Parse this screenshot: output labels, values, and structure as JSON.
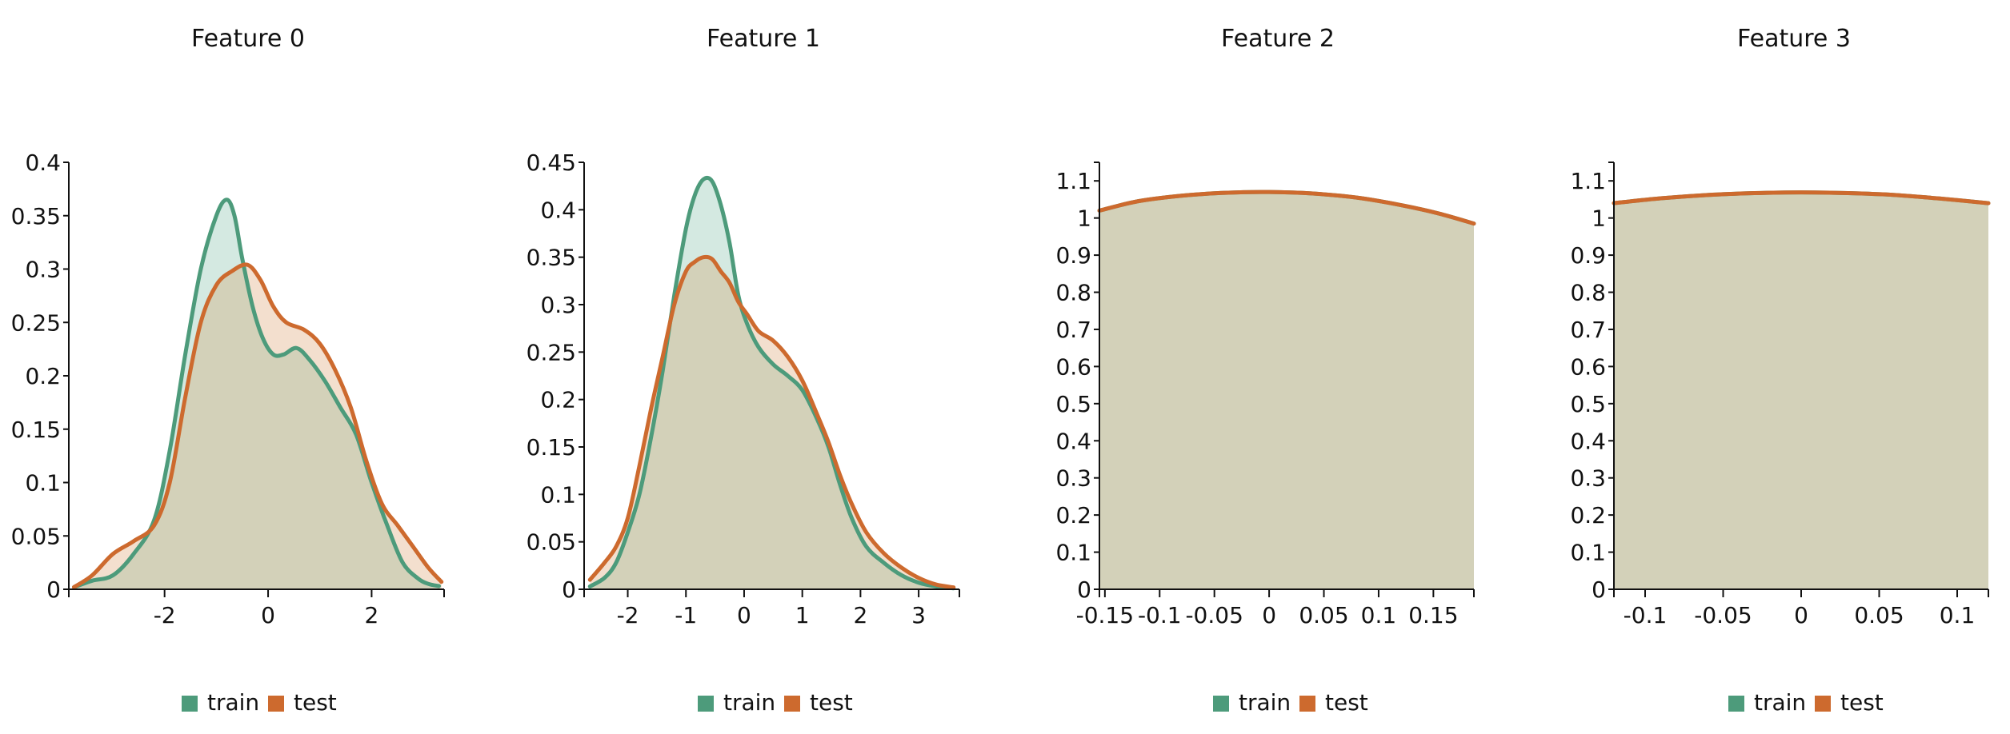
{
  "colors": {
    "train": "#4d9b7b",
    "test": "#cd6a2e",
    "train_fill": "#d4e9e1",
    "test_fill": "#f3dfce",
    "overlap_fill": "#d3d1b9"
  },
  "chart_data": [
    {
      "type": "area",
      "title": "Feature 0",
      "xlim": [
        -3.85,
        3.4
      ],
      "ylim": [
        0,
        0.4
      ],
      "xticks": [
        -2,
        0,
        2
      ],
      "xtick_labels": [
        "-2",
        "0",
        "2"
      ],
      "yticks": [
        0,
        0.05,
        0.1,
        0.15,
        0.2,
        0.25,
        0.3,
        0.35,
        0.4
      ],
      "ytick_labels": [
        "0",
        "0.05",
        "0.1",
        "0.15",
        "0.2",
        "0.25",
        "0.3",
        "0.35",
        "0.4"
      ],
      "legend": [
        "train",
        "test"
      ],
      "series": [
        {
          "name": "train",
          "points": [
            [
              -3.75,
              0.002
            ],
            [
              -3.4,
              0.008
            ],
            [
              -3.0,
              0.013
            ],
            [
              -2.6,
              0.033
            ],
            [
              -2.2,
              0.065
            ],
            [
              -1.9,
              0.13
            ],
            [
              -1.6,
              0.22
            ],
            [
              -1.3,
              0.3
            ],
            [
              -1.0,
              0.35
            ],
            [
              -0.8,
              0.365
            ],
            [
              -0.65,
              0.35
            ],
            [
              -0.5,
              0.31
            ],
            [
              -0.3,
              0.265
            ],
            [
              -0.1,
              0.235
            ],
            [
              0.1,
              0.22
            ],
            [
              0.3,
              0.22
            ],
            [
              0.55,
              0.226
            ],
            [
              0.8,
              0.215
            ],
            [
              1.1,
              0.195
            ],
            [
              1.4,
              0.17
            ],
            [
              1.7,
              0.145
            ],
            [
              2.0,
              0.1
            ],
            [
              2.3,
              0.06
            ],
            [
              2.6,
              0.025
            ],
            [
              2.9,
              0.01
            ],
            [
              3.1,
              0.005
            ],
            [
              3.3,
              0.003
            ]
          ]
        },
        {
          "name": "test",
          "points": [
            [
              -3.75,
              0.002
            ],
            [
              -3.4,
              0.013
            ],
            [
              -3.0,
              0.033
            ],
            [
              -2.6,
              0.045
            ],
            [
              -2.2,
              0.06
            ],
            [
              -1.9,
              0.1
            ],
            [
              -1.6,
              0.18
            ],
            [
              -1.3,
              0.25
            ],
            [
              -1.0,
              0.285
            ],
            [
              -0.7,
              0.298
            ],
            [
              -0.4,
              0.304
            ],
            [
              -0.15,
              0.29
            ],
            [
              0.1,
              0.265
            ],
            [
              0.35,
              0.25
            ],
            [
              0.7,
              0.243
            ],
            [
              1.0,
              0.23
            ],
            [
              1.3,
              0.205
            ],
            [
              1.6,
              0.17
            ],
            [
              1.9,
              0.12
            ],
            [
              2.2,
              0.08
            ],
            [
              2.5,
              0.06
            ],
            [
              2.8,
              0.04
            ],
            [
              3.1,
              0.02
            ],
            [
              3.35,
              0.007
            ]
          ]
        }
      ]
    },
    {
      "type": "area",
      "title": "Feature 1",
      "xlim": [
        -2.75,
        3.7
      ],
      "ylim": [
        0,
        0.45
      ],
      "xticks": [
        -2,
        -1,
        0,
        1,
        2,
        3
      ],
      "xtick_labels": [
        "-2",
        "-1",
        "0",
        "1",
        "2",
        "3"
      ],
      "yticks": [
        0,
        0.05,
        0.1,
        0.15,
        0.2,
        0.25,
        0.3,
        0.35,
        0.4,
        0.45
      ],
      "ytick_labels": [
        "0",
        "0.05",
        "0.1",
        "0.15",
        "0.2",
        "0.25",
        "0.3",
        "0.35",
        "0.4",
        "0.45"
      ],
      "legend": [
        "train",
        "test"
      ],
      "series": [
        {
          "name": "train",
          "points": [
            [
              -2.65,
              0.003
            ],
            [
              -2.4,
              0.012
            ],
            [
              -2.2,
              0.028
            ],
            [
              -2.0,
              0.06
            ],
            [
              -1.8,
              0.1
            ],
            [
              -1.6,
              0.16
            ],
            [
              -1.4,
              0.23
            ],
            [
              -1.2,
              0.31
            ],
            [
              -1.0,
              0.38
            ],
            [
              -0.85,
              0.415
            ],
            [
              -0.7,
              0.432
            ],
            [
              -0.55,
              0.43
            ],
            [
              -0.4,
              0.405
            ],
            [
              -0.25,
              0.365
            ],
            [
              -0.1,
              0.31
            ],
            [
              0.05,
              0.28
            ],
            [
              0.25,
              0.255
            ],
            [
              0.5,
              0.237
            ],
            [
              0.75,
              0.225
            ],
            [
              1.0,
              0.21
            ],
            [
              1.25,
              0.18
            ],
            [
              1.45,
              0.15
            ],
            [
              1.65,
              0.11
            ],
            [
              1.85,
              0.075
            ],
            [
              2.1,
              0.045
            ],
            [
              2.4,
              0.028
            ],
            [
              2.7,
              0.015
            ],
            [
              3.0,
              0.007
            ],
            [
              3.3,
              0.003
            ],
            [
              3.6,
              0.001
            ]
          ]
        },
        {
          "name": "test",
          "points": [
            [
              -2.65,
              0.01
            ],
            [
              -2.4,
              0.028
            ],
            [
              -2.2,
              0.045
            ],
            [
              -2.0,
              0.075
            ],
            [
              -1.8,
              0.13
            ],
            [
              -1.6,
              0.19
            ],
            [
              -1.4,
              0.245
            ],
            [
              -1.2,
              0.3
            ],
            [
              -1.0,
              0.335
            ],
            [
              -0.85,
              0.345
            ],
            [
              -0.7,
              0.35
            ],
            [
              -0.55,
              0.348
            ],
            [
              -0.4,
              0.335
            ],
            [
              -0.25,
              0.323
            ],
            [
              -0.1,
              0.303
            ],
            [
              0.05,
              0.29
            ],
            [
              0.25,
              0.272
            ],
            [
              0.5,
              0.262
            ],
            [
              0.75,
              0.245
            ],
            [
              1.0,
              0.22
            ],
            [
              1.25,
              0.185
            ],
            [
              1.45,
              0.155
            ],
            [
              1.65,
              0.12
            ],
            [
              1.85,
              0.09
            ],
            [
              2.1,
              0.06
            ],
            [
              2.4,
              0.038
            ],
            [
              2.7,
              0.023
            ],
            [
              3.0,
              0.012
            ],
            [
              3.3,
              0.005
            ],
            [
              3.6,
              0.002
            ]
          ]
        }
      ]
    },
    {
      "type": "area",
      "title": "Feature 2",
      "xlim": [
        -0.155,
        0.187
      ],
      "ylim": [
        0,
        1.15
      ],
      "xticks": [
        -0.15,
        -0.1,
        -0.05,
        0,
        0.05,
        0.1,
        0.15
      ],
      "xtick_labels": [
        "-0.15",
        "-0.1",
        "-0.05",
        "0",
        "0.05",
        "0.1",
        "0.15"
      ],
      "yticks": [
        0,
        0.1,
        0.2,
        0.3,
        0.4,
        0.5,
        0.6,
        0.7,
        0.8,
        0.9,
        1,
        1.1
      ],
      "ytick_labels": [
        "0",
        "0.1",
        "0.2",
        "0.3",
        "0.4",
        "0.5",
        "0.6",
        "0.7",
        "0.8",
        "0.9",
        "1",
        "1.1"
      ],
      "legend": [
        "train",
        "test"
      ],
      "series": [
        {
          "name": "train",
          "points": [
            [
              -0.155,
              1.02
            ],
            [
              -0.12,
              1.045
            ],
            [
              -0.08,
              1.06
            ],
            [
              -0.04,
              1.068
            ],
            [
              0.0,
              1.07
            ],
            [
              0.04,
              1.066
            ],
            [
              0.08,
              1.055
            ],
            [
              0.12,
              1.035
            ],
            [
              0.155,
              1.012
            ],
            [
              0.187,
              0.985
            ]
          ]
        },
        {
          "name": "test",
          "points": [
            [
              -0.155,
              1.02
            ],
            [
              -0.12,
              1.045
            ],
            [
              -0.08,
              1.06
            ],
            [
              -0.04,
              1.068
            ],
            [
              0.0,
              1.07
            ],
            [
              0.04,
              1.066
            ],
            [
              0.08,
              1.055
            ],
            [
              0.12,
              1.035
            ],
            [
              0.155,
              1.012
            ],
            [
              0.187,
              0.985
            ]
          ]
        }
      ]
    },
    {
      "type": "area",
      "title": "Feature 3",
      "xlim": [
        -0.12,
        0.12
      ],
      "ylim": [
        0,
        1.15
      ],
      "xticks": [
        -0.1,
        -0.05,
        0,
        0.05,
        0.1
      ],
      "xtick_labels": [
        "-0.1",
        "-0.05",
        "0",
        "0.05",
        "0.1"
      ],
      "yticks": [
        0,
        0.1,
        0.2,
        0.3,
        0.4,
        0.5,
        0.6,
        0.7,
        0.8,
        0.9,
        1,
        1.1
      ],
      "ytick_labels": [
        "0",
        "0.1",
        "0.2",
        "0.3",
        "0.4",
        "0.5",
        "0.6",
        "0.7",
        "0.8",
        "0.9",
        "1",
        "1.1"
      ],
      "legend": [
        "train",
        "test"
      ],
      "series": [
        {
          "name": "train",
          "points": [
            [
              -0.12,
              1.04
            ],
            [
              -0.09,
              1.053
            ],
            [
              -0.06,
              1.062
            ],
            [
              -0.03,
              1.067
            ],
            [
              0.0,
              1.069
            ],
            [
              0.03,
              1.067
            ],
            [
              0.06,
              1.062
            ],
            [
              0.09,
              1.052
            ],
            [
              0.12,
              1.04
            ]
          ]
        },
        {
          "name": "test",
          "points": [
            [
              -0.12,
              1.04
            ],
            [
              -0.09,
              1.053
            ],
            [
              -0.06,
              1.062
            ],
            [
              -0.03,
              1.067
            ],
            [
              0.0,
              1.069
            ],
            [
              0.03,
              1.067
            ],
            [
              0.06,
              1.062
            ],
            [
              0.09,
              1.052
            ],
            [
              0.12,
              1.04
            ]
          ]
        }
      ]
    }
  ]
}
